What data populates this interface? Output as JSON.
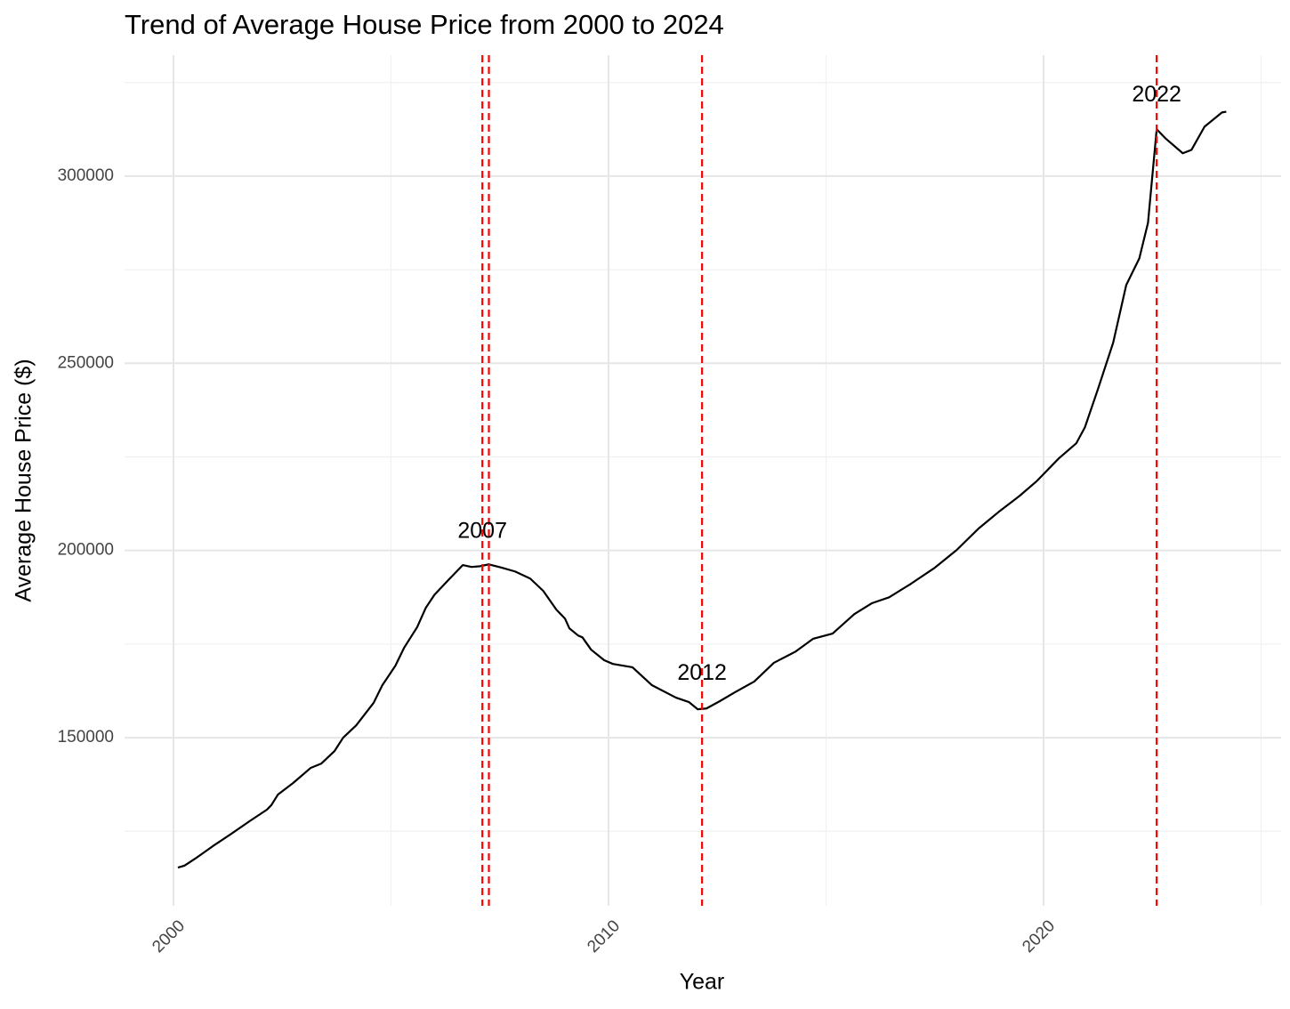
{
  "chart_data": {
    "type": "line",
    "title": "Trend of Average House Price from 2000 to 2024",
    "x_label": "Year",
    "y_label": "Average House Price ($)",
    "xlim": [
      1998.875,
      2025.46
    ],
    "ylim": [
      105100,
      332300
    ],
    "xticks": [
      2000,
      2010,
      2020
    ],
    "yticks": [
      150000,
      200000,
      250000,
      300000
    ],
    "xminor": [
      2005,
      2015,
      2025
    ],
    "yminor": [
      125000,
      175000,
      225000,
      275000,
      325000
    ],
    "grid": true,
    "vlines": [
      2007.1,
      2007.25,
      2012.15,
      2022.6
    ],
    "vline_color": "#ff0000",
    "annotations": [
      {
        "label": "2007",
        "x": 2007.1,
        "y": 205000
      },
      {
        "label": "2012",
        "x": 2012.15,
        "y": 167000
      },
      {
        "label": "2022",
        "x": 2022.6,
        "y": 321500
      }
    ],
    "series": [
      {
        "color": "#000000",
        "x": [
          2000.1,
          2000.25,
          2000.5,
          2000.9,
          2001.3,
          2001.75,
          2002.15,
          2002.25,
          2002.4,
          2002.75,
          2003.15,
          2003.4,
          2003.7,
          2003.9,
          2004.2,
          2004.6,
          2004.8,
          2005.1,
          2005.3,
          2005.6,
          2005.8,
          2006.0,
          2006.35,
          2006.65,
          2006.85,
          2007.05,
          2007.25,
          2007.55,
          2007.85,
          2008.2,
          2008.5,
          2008.8,
          2009.0,
          2009.1,
          2009.3,
          2009.4,
          2009.6,
          2009.9,
          2010.1,
          2010.55,
          2011.0,
          2011.55,
          2011.85,
          2012.05,
          2012.25,
          2012.55,
          2012.9,
          2013.35,
          2013.8,
          2014.3,
          2014.7,
          2015.15,
          2015.65,
          2016.05,
          2016.45,
          2016.95,
          2017.5,
          2018.0,
          2018.5,
          2019.0,
          2019.45,
          2019.85,
          2020.35,
          2020.75,
          2020.95,
          2021.25,
          2021.6,
          2021.9,
          2022.2,
          2022.4,
          2022.6,
          2022.8,
          2023.2,
          2023.4,
          2023.7,
          2024.1,
          2024.2
        ],
        "values": [
          115300,
          115800,
          117700,
          121000,
          124100,
          127700,
          130800,
          132000,
          134800,
          137900,
          141900,
          143100,
          146400,
          150000,
          153300,
          159300,
          164000,
          169200,
          174000,
          179500,
          184700,
          188200,
          192500,
          196100,
          195600,
          195800,
          196300,
          195400,
          194400,
          192500,
          189200,
          184200,
          181800,
          179200,
          177300,
          176800,
          173500,
          170700,
          169700,
          168800,
          164000,
          160700,
          159500,
          157600,
          157800,
          159700,
          162100,
          165000,
          170000,
          173000,
          176400,
          177800,
          183000,
          185900,
          187500,
          191100,
          195400,
          200100,
          205800,
          210600,
          214600,
          218600,
          224600,
          228600,
          232900,
          243100,
          255500,
          270900,
          278000,
          287500,
          312500,
          310100,
          306100,
          307000,
          313200,
          317000,
          317200
        ]
      }
    ]
  }
}
